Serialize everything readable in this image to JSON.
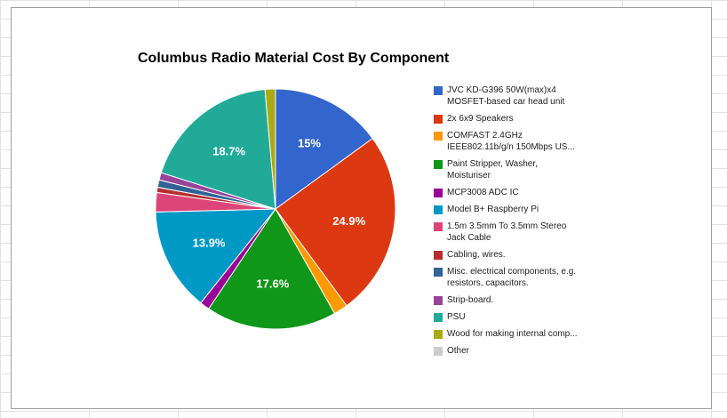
{
  "chart_data": {
    "type": "pie",
    "title": "Columbus Radio Material Cost By Component",
    "legend_position": "right",
    "slices": [
      {
        "label": "JVC KD-G396 50W(max)x4\nMOSFET-based car head unit",
        "value": 15.0,
        "display": "15%",
        "color": "#3366cc"
      },
      {
        "label": "2x 6x9 Speakers",
        "value": 24.9,
        "display": "24.9%",
        "color": "#dc3912"
      },
      {
        "label": "COMFAST 2.4GHz\nIEEE802.11b/g/n 150Mbps US...",
        "value": 1.9,
        "display": "",
        "color": "#ff9900"
      },
      {
        "label": "Paint Stripper, Washer,\nMoisturiser",
        "value": 17.6,
        "display": "17.6%",
        "color": "#109618"
      },
      {
        "label": "MCP3008 ADC IC",
        "value": 1.3,
        "display": "",
        "color": "#990099"
      },
      {
        "label": "Model B+ Raspberry Pi",
        "value": 13.9,
        "display": "13.9%",
        "color": "#0099c6"
      },
      {
        "label": "1.5m 3.5mm To 3.5mm Stereo\nJack Cable",
        "value": 2.6,
        "display": "",
        "color": "#dd4477"
      },
      {
        "label": "Cabling, wires.",
        "value": 0.7,
        "display": "",
        "color": "#b82e2e"
      },
      {
        "label": "Misc. electrical components, e.g.\nresistors, capacitors.",
        "value": 1.0,
        "display": "",
        "color": "#316395"
      },
      {
        "label": "Strip-board.",
        "value": 1.0,
        "display": "",
        "color": "#994499"
      },
      {
        "label": "PSU",
        "value": 18.7,
        "display": "18.7%",
        "color": "#22aa99"
      },
      {
        "label": "Wood for making internal comp...",
        "value": 1.4,
        "display": "",
        "color": "#aaaa11"
      },
      {
        "label": "Other",
        "value": 0.0,
        "display": "",
        "color": "#cccccc"
      }
    ]
  }
}
